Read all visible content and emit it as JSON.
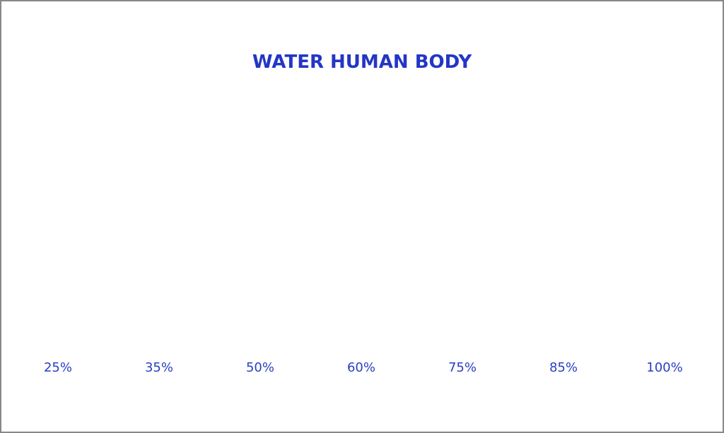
{
  "chart_data": {
    "type": "pictogram",
    "title": "WATER HUMAN BODY",
    "values": [
      25,
      35,
      50,
      60,
      75,
      85,
      100
    ],
    "value_labels": [
      "25%",
      "35%",
      "50%",
      "60%",
      "75%",
      "85%",
      "100%"
    ],
    "body_color": "#f5c6a5",
    "water_colors": [
      "#1c33c0",
      "#1f8fe4",
      "#1de2f8"
    ]
  }
}
